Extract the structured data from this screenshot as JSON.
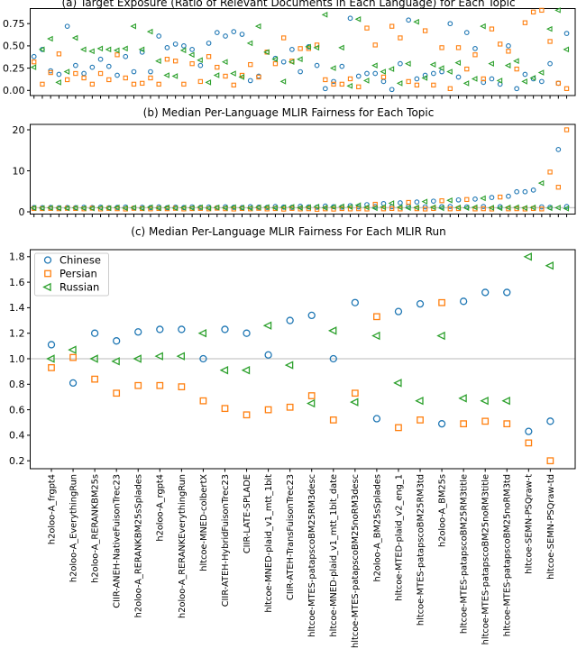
{
  "figure": {
    "colors": {
      "chinese": "#1f77b4",
      "persian": "#ff7f0e",
      "russian": "#2ca02c",
      "reference_line": "#c8c8c8",
      "axis": "#000000"
    },
    "legend": {
      "entries": [
        {
          "label": "Chinese",
          "marker": "circle"
        },
        {
          "label": "Persian",
          "marker": "square"
        },
        {
          "label": "Russian",
          "marker": "triangle-left"
        }
      ]
    },
    "chart_data": [
      {
        "id": "a",
        "type": "scatter",
        "title": "(a) Target Exposure (Ratio of Relevant Documents in Each Language) for Each Topic",
        "xlabel": "",
        "ylabel": "",
        "x_axis_note": "65 topics, tick marks unlabeled",
        "n_points": 65,
        "ylim": [
          0.0,
          0.92
        ],
        "yticks": {
          "values": [
            0,
            0.25,
            0.5,
            0.75
          ],
          "labels": [
            "0.00",
            "0.25",
            "0.50",
            "0.75"
          ]
        },
        "grid": false,
        "series": [
          {
            "name": "Chinese",
            "marker": "circle",
            "color": "#1f77b4",
            "values": [
              0.38,
              0.46,
              0.22,
              0.18,
              0.72,
              0.28,
              0.19,
              0.26,
              0.35,
              0.27,
              0.17,
              0.38,
              0.21,
              0.43,
              0.21,
              0.61,
              0.48,
              0.52,
              0.5,
              0.46,
              0.28,
              0.53,
              0.65,
              0.61,
              0.66,
              0.63,
              0.11,
              0.16,
              0.43,
              0.36,
              0.32,
              0.46,
              0.21,
              0.49,
              0.28,
              0.02,
              0.1,
              0.27,
              0.81,
              0.16,
              0.19,
              0.19,
              0.1,
              0.01,
              0.3,
              0.79,
              0.13,
              0.17,
              0.19,
              0.21,
              0.75,
              0.15,
              0.65,
              0.47,
              0.09,
              0.13,
              0.07,
              0.5,
              0.02,
              0.18,
              0.13,
              0.1,
              0.3,
              0.08,
              0.64
            ]
          },
          {
            "name": "Persian",
            "marker": "square",
            "color": "#ff7f0e",
            "values": [
              0.32,
              0.07,
              0.2,
              0.41,
              0.12,
              0.19,
              0.14,
              0.07,
              0.19,
              0.12,
              0.4,
              0.14,
              0.07,
              0.08,
              0.14,
              0.07,
              0.35,
              0.33,
              0.07,
              0.3,
              0.1,
              0.38,
              0.26,
              0.16,
              0.06,
              0.17,
              0.29,
              0.15,
              0.43,
              0.3,
              0.59,
              0.33,
              0.47,
              0.47,
              0.51,
              0.12,
              0.07,
              0.07,
              0.13,
              0.04,
              0.7,
              0.51,
              0.15,
              0.72,
              0.59,
              0.1,
              0.06,
              0.67,
              0.06,
              0.48,
              0.02,
              0.48,
              0.24,
              0.4,
              0.13,
              0.69,
              0.52,
              0.44,
              0.24,
              0.76,
              0.88,
              0.9,
              0.55,
              0.08,
              0.02
            ]
          },
          {
            "name": "Russian",
            "marker": "triangle-left",
            "color": "#2ca02c",
            "values": [
              0.26,
              0.46,
              0.58,
              0.09,
              0.21,
              0.59,
              0.46,
              0.44,
              0.47,
              0.46,
              0.45,
              0.47,
              0.72,
              0.46,
              0.66,
              0.33,
              0.17,
              0.16,
              0.45,
              0.4,
              0.34,
              0.09,
              0.17,
              0.32,
              0.19,
              0.15,
              0.53,
              0.72,
              0.43,
              0.35,
              0.1,
              0.32,
              0.35,
              0.49,
              0.48,
              0.85,
              0.25,
              0.48,
              0.05,
              0.8,
              0.11,
              0.28,
              0.21,
              0.24,
              0.08,
              0.3,
              0.77,
              0.14,
              0.29,
              0.25,
              0.21,
              0.31,
              0.08,
              0.13,
              0.72,
              0.3,
              0.11,
              0.28,
              0.33,
              0.1,
              0.14,
              0.2,
              0.69,
              0.9,
              0.46
            ]
          }
        ]
      },
      {
        "id": "b",
        "type": "scatter",
        "title": "(b) Median Per-Language MLIR Fairness for Each Topic",
        "xlabel": "",
        "ylabel": "",
        "x_axis_note": "65 topics, tick marks unlabeled",
        "n_points": 65,
        "ylim": [
          0,
          21
        ],
        "yticks": {
          "values": [
            0,
            10,
            20
          ],
          "labels": [
            "0",
            "10",
            "20"
          ]
        },
        "refline": 1.0,
        "grid": false,
        "series": [
          {
            "name": "Chinese",
            "marker": "circle",
            "color": "#1f77b4",
            "values": [
              1.05,
              1.02,
              1.08,
              1.0,
              1.05,
              1.02,
              1.1,
              1.05,
              1.12,
              1.0,
              1.08,
              1.15,
              0.95,
              1.1,
              1.05,
              1.18,
              1.0,
              1.12,
              1.05,
              1.2,
              1.08,
              1.15,
              1.0,
              1.22,
              1.1,
              1.05,
              1.25,
              1.12,
              1.08,
              1.3,
              1.15,
              1.1,
              1.35,
              1.2,
              1.12,
              1.4,
              1.25,
              1.15,
              1.5,
              1.2,
              1.75,
              1.3,
              2.0,
              1.25,
              2.2,
              1.3,
              2.4,
              1.2,
              2.6,
              1.25,
              1.3,
              2.9,
              1.2,
              3.1,
              1.3,
              3.5,
              1.25,
              3.8,
              4.9,
              4.9,
              5.3,
              1.2,
              1.1,
              15.2,
              1.3
            ]
          },
          {
            "name": "Persian",
            "marker": "square",
            "color": "#ff7f0e",
            "values": [
              0.8,
              0.78,
              0.82,
              0.75,
              0.85,
              0.8,
              0.72,
              0.88,
              0.7,
              0.82,
              0.75,
              0.68,
              0.85,
              0.78,
              0.72,
              0.8,
              0.75,
              0.85,
              0.7,
              0.78,
              0.82,
              0.72,
              0.88,
              0.75,
              0.68,
              0.8,
              0.72,
              0.85,
              0.7,
              0.78,
              0.65,
              0.82,
              0.7,
              0.75,
              0.6,
              0.72,
              0.65,
              0.78,
              0.7,
              0.75,
              0.68,
              1.85,
              0.72,
              0.8,
              0.7,
              2.3,
              0.75,
              0.68,
              0.8,
              2.7,
              0.72,
              0.78,
              3.0,
              0.7,
              0.75,
              0.68,
              3.6,
              0.72,
              0.75,
              0.68,
              0.8,
              0.7,
              9.7,
              6.0,
              20.0
            ]
          },
          {
            "name": "Russian",
            "marker": "triangle-left",
            "color": "#2ca02c",
            "values": [
              0.95,
              0.92,
              0.96,
              0.9,
              0.88,
              0.95,
              0.9,
              0.85,
              0.95,
              0.9,
              1.05,
              0.92,
              1.0,
              0.88,
              1.1,
              0.9,
              1.05,
              0.92,
              1.0,
              0.95,
              1.1,
              0.9,
              1.05,
              0.95,
              1.12,
              1.0,
              0.92,
              1.08,
              1.15,
              0.95,
              1.1,
              1.2,
              0.98,
              1.15,
              1.25,
              1.0,
              1.18,
              1.3,
              1.2,
              1.6,
              1.1,
              0.9,
              1.15,
              2.1,
              1.1,
              0.95,
              1.05,
              2.5,
              1.1,
              0.9,
              2.8,
              1.05,
              0.95,
              1.1,
              3.3,
              1.0,
              0.9,
              1.05,
              1.1,
              0.95,
              1.05,
              7.0,
              0.9,
              1.0,
              0.8
            ]
          }
        ]
      },
      {
        "id": "c",
        "type": "scatter",
        "title": "(c) Median Per-Language MLIR Fairness For Each MLIR Run",
        "xlabel": "",
        "ylabel": "",
        "n_points": 24,
        "ylim": [
          0.14,
          1.85
        ],
        "yticks": {
          "values": [
            0.2,
            0.4,
            0.6,
            0.8,
            1.0,
            1.2,
            1.4,
            1.6,
            1.8
          ],
          "labels": [
            "0.2",
            "0.4",
            "0.6",
            "0.8",
            "1.0",
            "1.2",
            "1.4",
            "1.6",
            "1.8"
          ]
        },
        "refline": 1.0,
        "grid": false,
        "legend_position": "upper left",
        "x_labels": [
          "h2oloo-A_frgpt4",
          "h2oloo-A_EverythingRun",
          "h2oloo-A_RERANKBM25s",
          "CIIR-ANEH-NativeFuisonTrec23",
          "h2oloo-A_RERANKBM25sSplades",
          "h2oloo-A_rgpt4",
          "h2oloo-A_RERANKEverythingRun",
          "hltcoe-MNED-colbertX",
          "CIIR-ATEH-HybridFuisonTrec23",
          "CIIR-LATE-SPLADE",
          "hltcoe-MNED-plaid_v1_mtt_1bit",
          "CIIR-ATEH-TransFuisonTrec23",
          "hltcoe-MTES-patapscoBM25RM3desc",
          "hltcoe-MNED-plaid_v1_mtt_1bit_date",
          "hltcoe-MTES-patapscoBM25noRM3desc",
          "h2oloo-A_BM25sSplades",
          "hltcoe-MTED-plaid_v2_eng_1",
          "hltcoe-MTES-patapscoBM25RM3td",
          "h2oloo-A_BM25s",
          "hltcoe-MTES-patapscoBM25RM3title",
          "hltcoe-MTES-patapscoBM25noRM3title",
          "hltcoe-MTES-patapscoBM25noRM3td",
          "hltcoe-SEMN-PSQraw-t",
          "hltcoe-SEMN-PSQraw-td"
        ],
        "series": [
          {
            "name": "Chinese",
            "marker": "circle",
            "color": "#1f77b4",
            "values": [
              1.11,
              0.81,
              1.2,
              1.14,
              1.21,
              1.23,
              1.23,
              1.0,
              1.23,
              1.2,
              1.03,
              1.3,
              1.34,
              1.0,
              1.44,
              0.53,
              1.37,
              1.43,
              0.49,
              1.45,
              1.52,
              1.52,
              0.43,
              0.51
            ]
          },
          {
            "name": "Persian",
            "marker": "square",
            "color": "#ff7f0e",
            "values": [
              0.93,
              1.01,
              0.84,
              0.73,
              0.79,
              0.79,
              0.78,
              0.67,
              0.61,
              0.56,
              0.6,
              0.62,
              0.71,
              0.52,
              0.73,
              1.33,
              0.46,
              0.52,
              1.44,
              0.49,
              0.51,
              0.49,
              0.34,
              0.2
            ]
          },
          {
            "name": "Russian",
            "marker": "triangle-left",
            "color": "#2ca02c",
            "values": [
              1.0,
              1.07,
              1.0,
              0.98,
              1.0,
              1.02,
              1.02,
              1.2,
              0.91,
              0.91,
              1.26,
              0.95,
              0.65,
              1.22,
              0.66,
              1.18,
              0.81,
              0.67,
              1.18,
              0.69,
              0.67,
              0.67,
              1.8,
              1.73
            ]
          }
        ]
      }
    ]
  }
}
